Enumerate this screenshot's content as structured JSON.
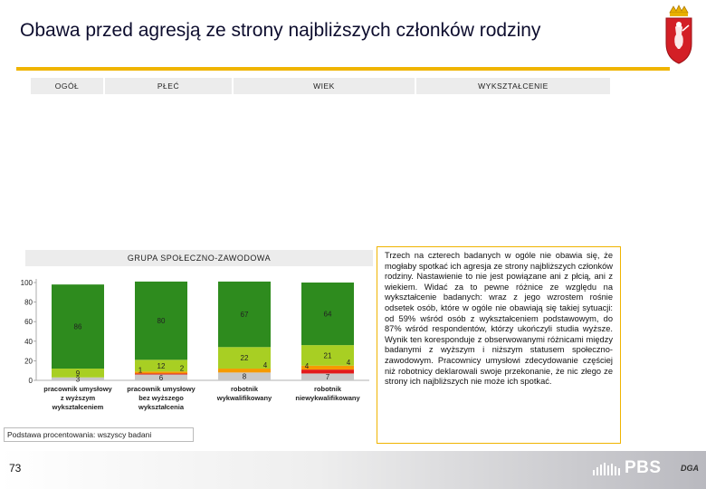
{
  "page": {
    "title": "Obawa przed agresją ze strony najbliższych członków rodziny",
    "page_number": "73",
    "footnote": "Podstawa procentowania: wszyscy badani",
    "logo_text": "PBS",
    "logo_suffix": "DGA"
  },
  "headers": {
    "ogol": "OGÓŁ",
    "plec": "PŁEĆ",
    "wiek": "WIEK",
    "wyksztalcenie": "WYKSZTAŁCENIE",
    "grupa": "GRUPA SPOŁECZNO-ZAWODOWA"
  },
  "note_text": "Trzech na czterech badanych w ogóle nie obawia się, że mogłaby spotkać ich agresja ze strony najbliższych członków rodziny. Nastawienie to nie jest powiązane ani z płcią, ani z wiekiem. Widać za to pewne różnice ze względu na wykształcenie badanych: wraz z jego wzrostem rośnie odsetek osób, które w ogóle nie obawiają się takiej sytuacji: od 59% wśród osób z wykształceniem podstawowym, do 87% wśród respondentów, którzy ukończyli studia wyższe. Wynik ten koresponduje z obserwowanymi różnicami między badanymi z wyższym i niższym statusem społeczno-zawodowym. Pracownicy umysłowi zdecydowanie częściej niż robotnicy deklarowali swoje przekonanie, że nic złego ze strony ich najbliższych nie może ich spotkać.",
  "colors": {
    "green": "#2e8b1e",
    "lightgreen": "#a8cf23",
    "orange": "#f59a00",
    "red": "#e31b1b",
    "gray": "#c8c8c8",
    "accent": "#f0b400"
  },
  "chart_data": {
    "type": "bar",
    "stacked": true,
    "ylim": [
      0,
      100
    ],
    "yticks": [
      "0",
      "20",
      "40",
      "60",
      "80",
      "100"
    ],
    "categories": [
      "pracownik umysłowy z wyższym wykształceniem",
      "pracownik umysłowy bez wyższego wykształcenia",
      "robotnik wykwalifikowany",
      "robotnik niewykwalifikowany"
    ],
    "series": [
      {
        "color_key": "gray",
        "values": [
          3,
          6,
          8,
          7
        ]
      },
      {
        "color_key": "red",
        "values": [
          0,
          1,
          0,
          4
        ]
      },
      {
        "color_key": "orange",
        "values": [
          0,
          2,
          4,
          4
        ]
      },
      {
        "color_key": "lightgreen",
        "values": [
          9,
          12,
          22,
          21
        ]
      },
      {
        "color_key": "green",
        "values": [
          86,
          80,
          67,
          64
        ]
      }
    ]
  }
}
